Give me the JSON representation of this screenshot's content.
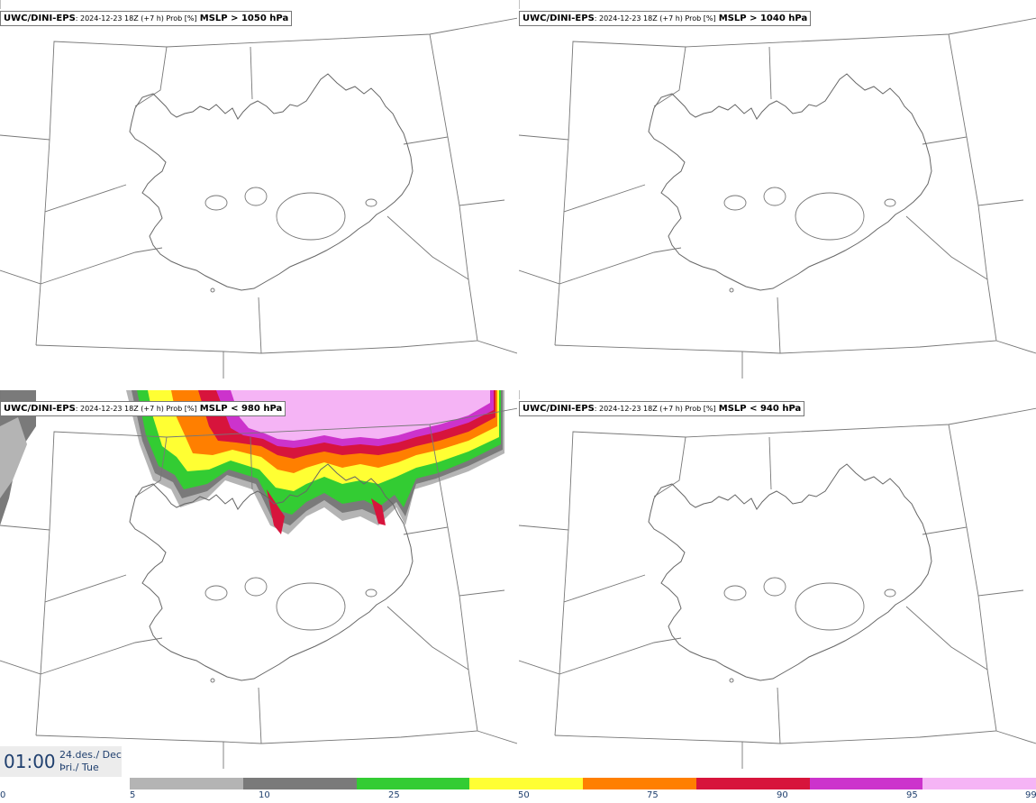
{
  "panels": [
    {
      "model": "UWC/DINI-EPS",
      "meta": ": 2024-12-23 18Z (+7 h) Prob [%]",
      "param": "MSLP > 1050 hPa",
      "has_field": false
    },
    {
      "model": "UWC/DINI-EPS",
      "meta": ": 2024-12-23 18Z (+7 h) Prob [%]",
      "param": "MSLP > 1040 hPa",
      "has_field": false
    },
    {
      "model": "UWC/DINI-EPS",
      "meta": ": 2024-12-23 18Z (+7 h) Prob [%]",
      "param": "MSLP < 980 hPa",
      "has_field": true
    },
    {
      "model": "UWC/DINI-EPS",
      "meta": ": 2024-12-23 18Z (+7 h) Prob [%]",
      "param": "MSLP < 940 hPa",
      "has_field": false
    }
  ],
  "time": {
    "clock": "01:00",
    "date_line1": "24.des./ Dec",
    "date_line2": "Þri./ Tue"
  },
  "colorbar": {
    "ticks": [
      "0",
      "5",
      "10",
      "25",
      "50",
      "75",
      "90",
      "95",
      "99"
    ],
    "colors": [
      "#ffffff",
      "#b4b4b4",
      "#7a7a7a",
      "#33cc33",
      "#ffff33",
      "#ff7f00",
      "#d7143c",
      "#cc33cc",
      "#f5b4f5"
    ]
  }
}
